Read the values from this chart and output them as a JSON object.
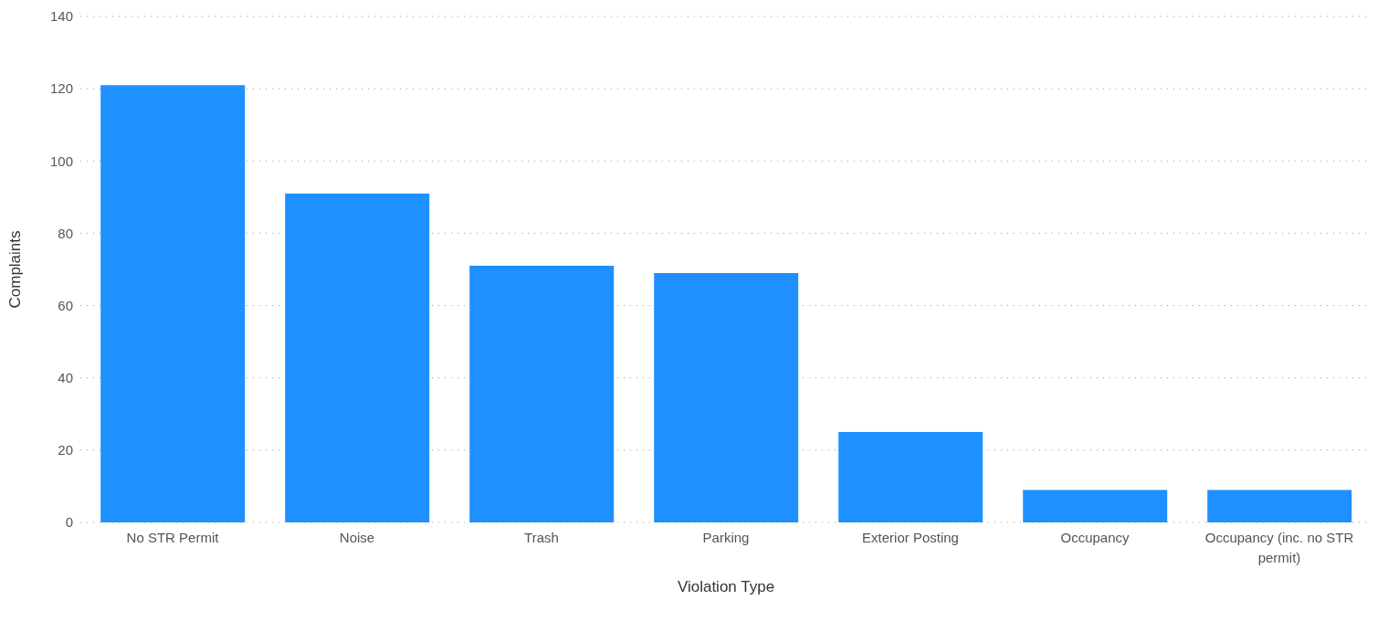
{
  "chart_data": {
    "type": "bar",
    "xlabel": "Violation Type",
    "ylabel": "Complaints",
    "categories": [
      "No STR Permit",
      "Noise",
      "Trash",
      "Parking",
      "Exterior Posting",
      "Occupancy",
      "Occupancy (inc. no STR permit)"
    ],
    "values": [
      121,
      91,
      71,
      69,
      25,
      9,
      9
    ],
    "color": "#1e90ff",
    "ylim": [
      0,
      140
    ],
    "yticks": [
      0,
      20,
      40,
      60,
      80,
      100,
      120,
      140
    ],
    "grid": "y",
    "legend": false
  }
}
